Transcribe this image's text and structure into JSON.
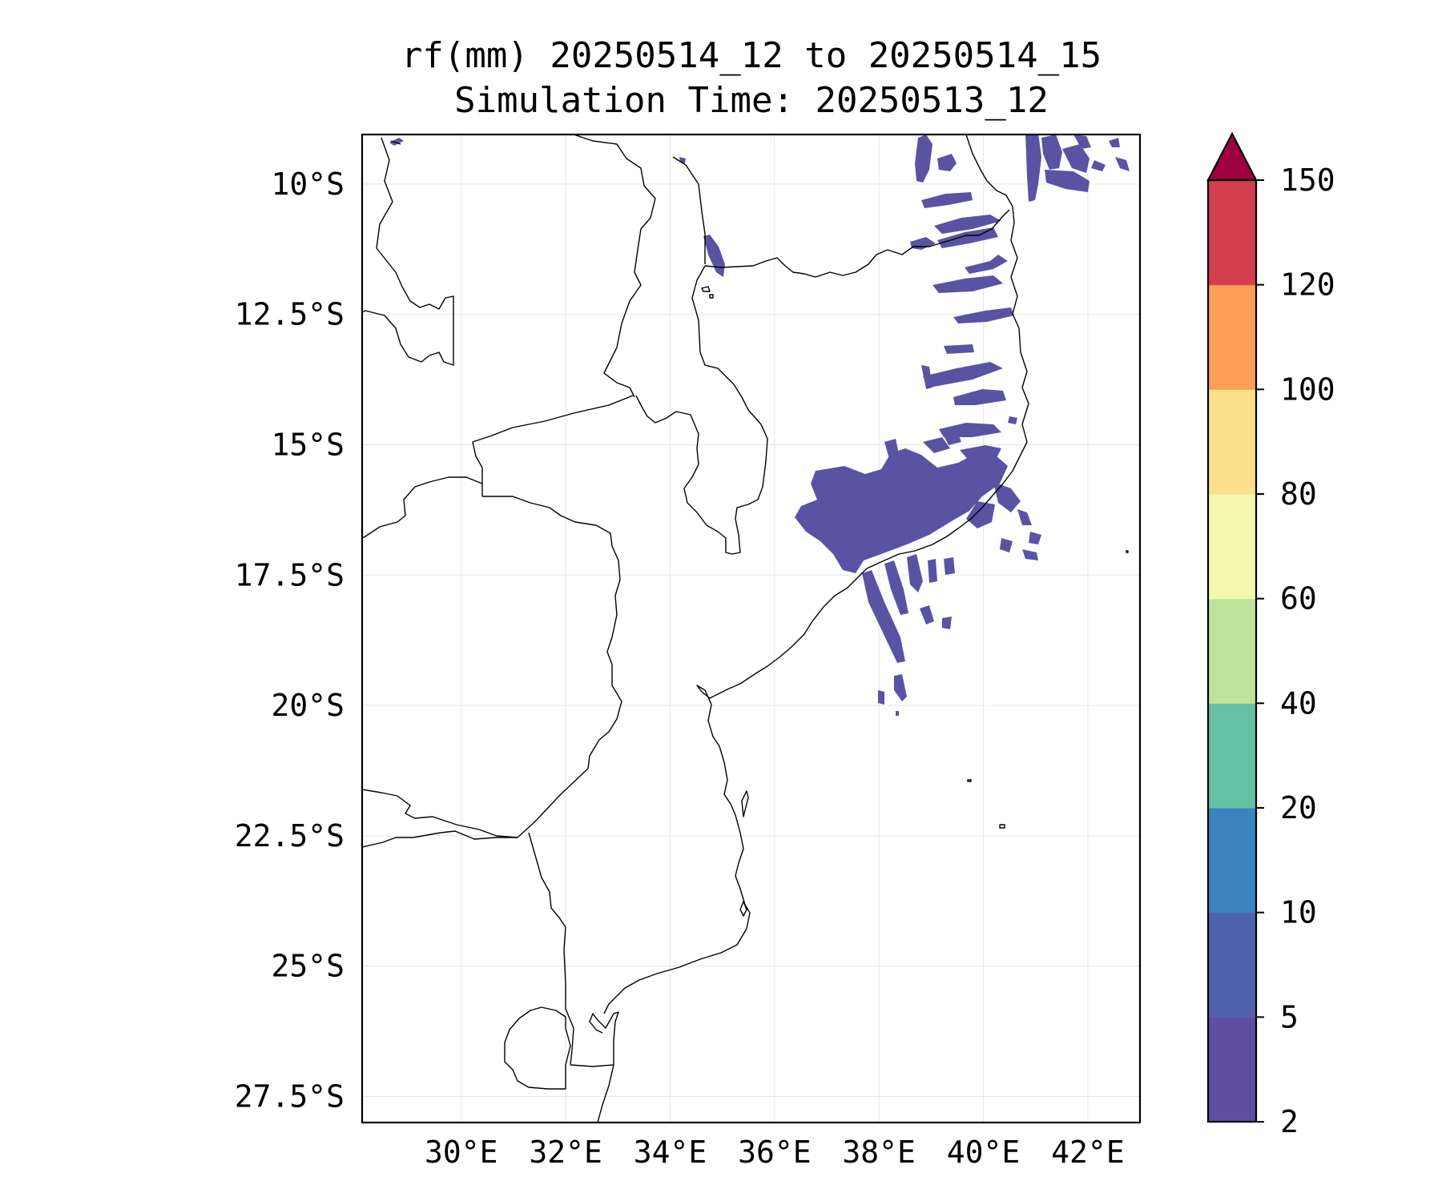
{
  "title": {
    "line1": "rf(mm) 20250514_12 to 20250514_15",
    "line2": "Simulation Time: 20250513_12"
  },
  "map": {
    "lon_range": [
      28.1,
      43.0
    ],
    "lat_range": [
      -28.0,
      -9.05
    ],
    "lon_ticks": [
      30,
      32,
      34,
      36,
      38,
      40,
      42
    ],
    "lon_tick_labels": [
      "30°E",
      "32°E",
      "34°E",
      "36°E",
      "38°E",
      "40°E",
      "42°E"
    ],
    "lat_ticks": [
      -10,
      -12.5,
      -15,
      -17.5,
      -20,
      -22.5,
      -25,
      -27.5
    ],
    "lat_tick_labels": [
      "10°S",
      "12.5°S",
      "15°S",
      "17.5°S",
      "20°S",
      "22.5°S",
      "25°S",
      "27.5°S"
    ],
    "gridlines": true,
    "rain_color": "#5a53a3"
  },
  "colorbar": {
    "levels": [
      2,
      5,
      10,
      20,
      40,
      60,
      80,
      100,
      120,
      150
    ],
    "labels": [
      "2",
      "5",
      "10",
      "20",
      "40",
      "60",
      "80",
      "100",
      "120",
      "150"
    ],
    "colors": [
      "#5e4fa2",
      "#4f63ad",
      "#3b84bd",
      "#66c2a5",
      "#bde49b",
      "#f3fab0",
      "#fde08b",
      "#fb9f59",
      "#d53e4f"
    ],
    "extend_color": "#9e0142",
    "extend": "max",
    "placement": "right"
  }
}
